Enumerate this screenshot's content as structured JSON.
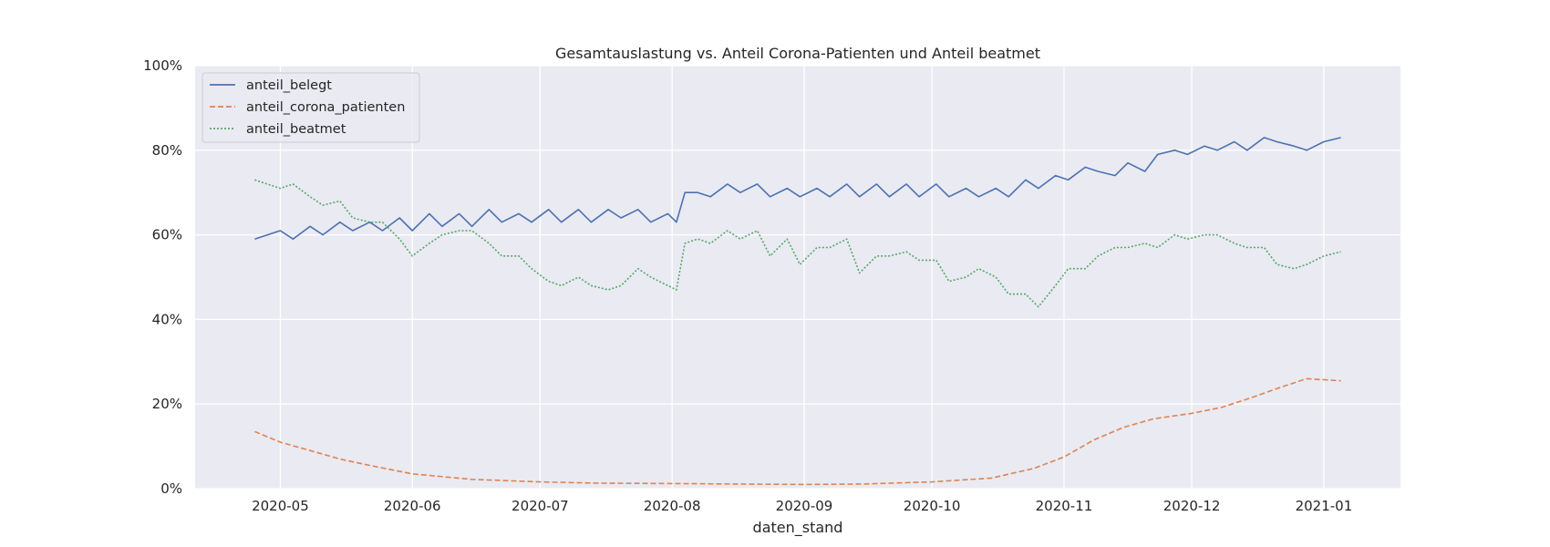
{
  "chart_data": {
    "type": "line",
    "title": "Gesamtauslastung vs. Anteil Corona-Patienten und Anteil beatmet",
    "xlabel": "daten_stand",
    "ylabel": "",
    "x_range": [
      "2020-04-11",
      "2021-01-19"
    ],
    "ylim": [
      0,
      100
    ],
    "y_ticks": [
      0,
      20,
      40,
      60,
      80,
      100
    ],
    "y_tick_labels": [
      "0%",
      "20%",
      "40%",
      "60%",
      "80%",
      "100%"
    ],
    "x_ticks": [
      "2020-05-01",
      "2020-06-01",
      "2020-07-01",
      "2020-08-01",
      "2020-09-01",
      "2020-10-01",
      "2020-11-01",
      "2020-12-01",
      "2021-01-01"
    ],
    "x_tick_labels": [
      "2020-05",
      "2020-06",
      "2020-07",
      "2020-08",
      "2020-09",
      "2020-10",
      "2020-11",
      "2020-12",
      "2021-01"
    ],
    "grid": true,
    "legend_position": "top-left",
    "background": "#eaeaf2",
    "series": [
      {
        "name": "anteil_belegt",
        "color": "#4c72b0",
        "dash": "solid",
        "x": [
          "2020-04-25",
          "2020-05-01",
          "2020-05-04",
          "2020-05-08",
          "2020-05-11",
          "2020-05-15",
          "2020-05-18",
          "2020-05-22",
          "2020-05-25",
          "2020-05-29",
          "2020-06-01",
          "2020-06-05",
          "2020-06-08",
          "2020-06-12",
          "2020-06-15",
          "2020-06-19",
          "2020-06-22",
          "2020-06-26",
          "2020-06-29",
          "2020-07-03",
          "2020-07-06",
          "2020-07-10",
          "2020-07-13",
          "2020-07-17",
          "2020-07-20",
          "2020-07-24",
          "2020-07-27",
          "2020-07-31",
          "2020-08-02",
          "2020-08-04",
          "2020-08-07",
          "2020-08-10",
          "2020-08-14",
          "2020-08-17",
          "2020-08-21",
          "2020-08-24",
          "2020-08-28",
          "2020-08-31",
          "2020-09-04",
          "2020-09-07",
          "2020-09-11",
          "2020-09-14",
          "2020-09-18",
          "2020-09-21",
          "2020-09-25",
          "2020-09-28",
          "2020-10-02",
          "2020-10-05",
          "2020-10-09",
          "2020-10-12",
          "2020-10-16",
          "2020-10-19",
          "2020-10-23",
          "2020-10-26",
          "2020-10-30",
          "2020-11-02",
          "2020-11-06",
          "2020-11-09",
          "2020-11-13",
          "2020-11-16",
          "2020-11-20",
          "2020-11-23",
          "2020-11-27",
          "2020-11-30",
          "2020-12-04",
          "2020-12-07",
          "2020-12-11",
          "2020-12-14",
          "2020-12-18",
          "2020-12-21",
          "2020-12-25",
          "2020-12-28",
          "2021-01-01",
          "2021-01-05"
        ],
        "values": [
          59,
          61,
          59,
          62,
          60,
          63,
          61,
          63,
          61,
          64,
          61,
          65,
          62,
          65,
          62,
          66,
          63,
          65,
          63,
          66,
          63,
          66,
          63,
          66,
          64,
          66,
          63,
          65,
          63,
          70,
          70,
          69,
          72,
          70,
          72,
          69,
          71,
          69,
          71,
          69,
          72,
          69,
          72,
          69,
          72,
          69,
          72,
          69,
          71,
          69,
          71,
          69,
          73,
          71,
          74,
          73,
          76,
          75,
          74,
          77,
          75,
          79,
          80,
          79,
          81,
          80,
          82,
          80,
          83,
          82,
          81,
          80,
          82,
          83
        ]
      },
      {
        "name": "anteil_corona_patienten",
        "color": "#dd8452",
        "dash": "dashed",
        "x": [
          "2020-04-25",
          "2020-05-01",
          "2020-05-08",
          "2020-05-15",
          "2020-05-22",
          "2020-06-01",
          "2020-06-15",
          "2020-07-01",
          "2020-07-15",
          "2020-08-01",
          "2020-08-15",
          "2020-09-01",
          "2020-09-15",
          "2020-10-01",
          "2020-10-15",
          "2020-10-25",
          "2020-11-01",
          "2020-11-08",
          "2020-11-15",
          "2020-11-22",
          "2020-12-01",
          "2020-12-08",
          "2020-12-15",
          "2020-12-22",
          "2020-12-28",
          "2021-01-05"
        ],
        "values": [
          13.5,
          11,
          9,
          7,
          5.5,
          3.5,
          2.2,
          1.6,
          1.3,
          1.2,
          1.1,
          1.0,
          1.1,
          1.6,
          2.5,
          4.8,
          7.5,
          11.5,
          14.5,
          16.5,
          17.8,
          19.2,
          21.5,
          24,
          26,
          25.5
        ]
      },
      {
        "name": "anteil_beatmet",
        "color": "#55a868",
        "dash": "dotted",
        "x": [
          "2020-04-25",
          "2020-05-01",
          "2020-05-04",
          "2020-05-08",
          "2020-05-11",
          "2020-05-15",
          "2020-05-18",
          "2020-05-22",
          "2020-05-25",
          "2020-05-29",
          "2020-06-01",
          "2020-06-05",
          "2020-06-08",
          "2020-06-12",
          "2020-06-15",
          "2020-06-19",
          "2020-06-22",
          "2020-06-26",
          "2020-06-29",
          "2020-07-03",
          "2020-07-06",
          "2020-07-10",
          "2020-07-13",
          "2020-07-17",
          "2020-07-20",
          "2020-07-24",
          "2020-07-27",
          "2020-07-31",
          "2020-08-02",
          "2020-08-04",
          "2020-08-07",
          "2020-08-10",
          "2020-08-14",
          "2020-08-17",
          "2020-08-21",
          "2020-08-24",
          "2020-08-28",
          "2020-08-31",
          "2020-09-04",
          "2020-09-07",
          "2020-09-11",
          "2020-09-14",
          "2020-09-18",
          "2020-09-21",
          "2020-09-25",
          "2020-09-28",
          "2020-10-02",
          "2020-10-05",
          "2020-10-09",
          "2020-10-12",
          "2020-10-16",
          "2020-10-19",
          "2020-10-23",
          "2020-10-26",
          "2020-10-30",
          "2020-11-02",
          "2020-11-06",
          "2020-11-09",
          "2020-11-13",
          "2020-11-16",
          "2020-11-20",
          "2020-11-23",
          "2020-11-27",
          "2020-11-30",
          "2020-12-04",
          "2020-12-07",
          "2020-12-11",
          "2020-12-14",
          "2020-12-18",
          "2020-12-21",
          "2020-12-25",
          "2020-12-28",
          "2021-01-01",
          "2021-01-05"
        ],
        "values": [
          73,
          71,
          72,
          69,
          67,
          68,
          64,
          63,
          63,
          59,
          55,
          58,
          60,
          61,
          61,
          58,
          55,
          55,
          52,
          49,
          48,
          50,
          48,
          47,
          48,
          52,
          50,
          48,
          47,
          58,
          59,
          58,
          61,
          59,
          61,
          55,
          59,
          53,
          57,
          57,
          59,
          51,
          55,
          55,
          56,
          54,
          54,
          49,
          50,
          52,
          50,
          46,
          46,
          43,
          48,
          52,
          52,
          55,
          57,
          57,
          58,
          57,
          60,
          59,
          60,
          60,
          58,
          57,
          57,
          53,
          52,
          53,
          55,
          56
        ]
      }
    ]
  }
}
